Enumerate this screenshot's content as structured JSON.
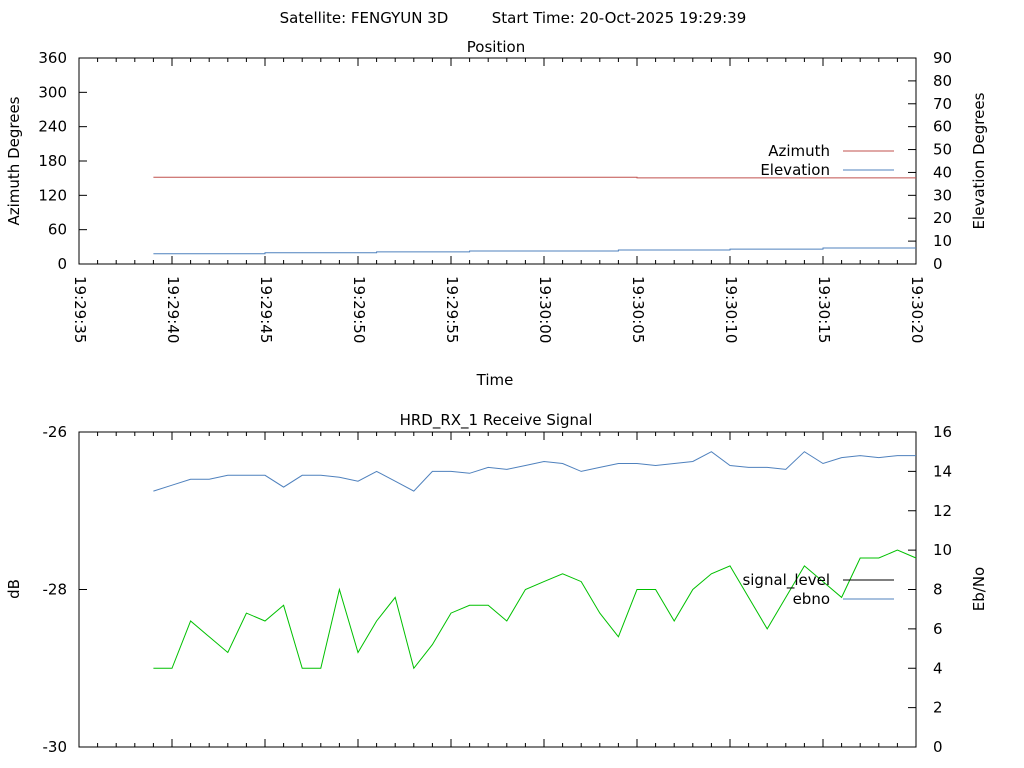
{
  "header": {
    "satellite": "Satellite: FENGYUN 3D",
    "start_time": "Start Time: 20-Oct-2025 19:29:39"
  },
  "colors": {
    "azimuth": "#c0504d",
    "elevation": "#4f81bd",
    "ebno": "#4f81bd",
    "signal_level_line": "#00c000",
    "signal_level_legend": "#000000"
  },
  "chart_data": [
    {
      "type": "line",
      "title": "Position",
      "xlabel": "Time",
      "ylabel": "Azimuth Degrees",
      "y2label": "Elevation Degrees",
      "xlim": [
        "19:29:35",
        "19:30:20"
      ],
      "ylim": [
        0,
        360
      ],
      "y2lim": [
        0,
        90
      ],
      "x_ticks": [
        "19:29:35",
        "19:29:40",
        "19:29:45",
        "19:29:50",
        "19:29:55",
        "19:30:00",
        "19:30:05",
        "19:30:10",
        "19:30:15",
        "19:30:20"
      ],
      "y_ticks": [
        "0",
        "60",
        "120",
        "180",
        "240",
        "300",
        "360"
      ],
      "y2_ticks": [
        "0",
        "10",
        "20",
        "30",
        "40",
        "50",
        "60",
        "70",
        "80",
        "90"
      ],
      "grid": false,
      "legend": "right",
      "series": [
        {
          "name": "Azimuth",
          "axis": "y",
          "x": [
            "19:29:39",
            "19:30:05",
            "19:30:05",
            "19:30:20"
          ],
          "y": [
            151.5,
            151.5,
            150.5,
            150.5
          ]
        },
        {
          "name": "Elevation",
          "axis": "y2",
          "x": [
            "19:29:39",
            "19:29:45",
            "19:29:45",
            "19:29:51",
            "19:29:51",
            "19:29:56",
            "19:29:56",
            "19:30:04",
            "19:30:04",
            "19:30:10",
            "19:30:10",
            "19:30:15",
            "19:30:15",
            "19:30:20"
          ],
          "y": [
            4.5,
            4.5,
            4.9,
            4.9,
            5.3,
            5.3,
            5.7,
            5.7,
            6.1,
            6.1,
            6.5,
            6.5,
            7.0,
            7.0
          ]
        }
      ]
    },
    {
      "type": "line",
      "title": "HRD_RX_1 Receive Signal",
      "ylabel": "dB",
      "y2label": "Eb/No",
      "xlim": [
        "19:29:35",
        "19:30:20"
      ],
      "ylim": [
        -30,
        -26
      ],
      "y2lim": [
        0,
        16
      ],
      "y_ticks": [
        "-30",
        "-28",
        "-26"
      ],
      "y2_ticks": [
        "0",
        "2",
        "4",
        "6",
        "8",
        "10",
        "12",
        "14",
        "16"
      ],
      "grid": false,
      "legend": "right",
      "x": [
        "19:29:39",
        "19:29:40",
        "19:29:41",
        "19:29:42",
        "19:29:43",
        "19:29:44",
        "19:29:45",
        "19:29:46",
        "19:29:47",
        "19:29:48",
        "19:29:49",
        "19:29:50",
        "19:29:51",
        "19:29:52",
        "19:29:53",
        "19:29:54",
        "19:29:55",
        "19:29:56",
        "19:29:57",
        "19:29:58",
        "19:29:59",
        "19:30:00",
        "19:30:01",
        "19:30:02",
        "19:30:03",
        "19:30:04",
        "19:30:05",
        "19:30:06",
        "19:30:07",
        "19:30:08",
        "19:30:09",
        "19:30:10",
        "19:30:11",
        "19:30:12",
        "19:30:13",
        "19:30:14",
        "19:30:15",
        "19:30:16",
        "19:30:17",
        "19:30:18",
        "19:30:19",
        "19:30:20"
      ],
      "series": [
        {
          "name": "signal_level",
          "axis": "y",
          "values": [
            -29.0,
            -29.0,
            -28.4,
            -28.6,
            -28.8,
            -28.3,
            -28.4,
            -28.2,
            -29.0,
            -29.0,
            -28.0,
            -28.8,
            -28.4,
            -28.1,
            -29.0,
            -28.7,
            -28.3,
            -28.2,
            -28.2,
            -28.4,
            -28.0,
            -27.9,
            -27.8,
            -27.9,
            -28.3,
            -28.6,
            -28.0,
            -28.0,
            -28.4,
            -28.0,
            -27.8,
            -27.7,
            -28.1,
            -28.5,
            -28.1,
            -27.7,
            -27.9,
            -28.1,
            -27.6,
            -27.6,
            -27.5,
            -27.6
          ]
        },
        {
          "name": "ebno",
          "axis": "y2",
          "values": [
            13.0,
            13.3,
            13.6,
            13.6,
            13.8,
            13.8,
            13.8,
            13.2,
            13.8,
            13.8,
            13.7,
            13.5,
            14.0,
            13.5,
            13.0,
            14.0,
            14.0,
            13.9,
            14.2,
            14.1,
            14.3,
            14.5,
            14.4,
            14.0,
            14.2,
            14.4,
            14.4,
            14.3,
            14.4,
            14.5,
            15.0,
            14.3,
            14.2,
            14.2,
            14.1,
            15.0,
            14.4,
            14.7,
            14.8,
            14.7,
            14.8,
            14.8
          ]
        }
      ]
    }
  ]
}
